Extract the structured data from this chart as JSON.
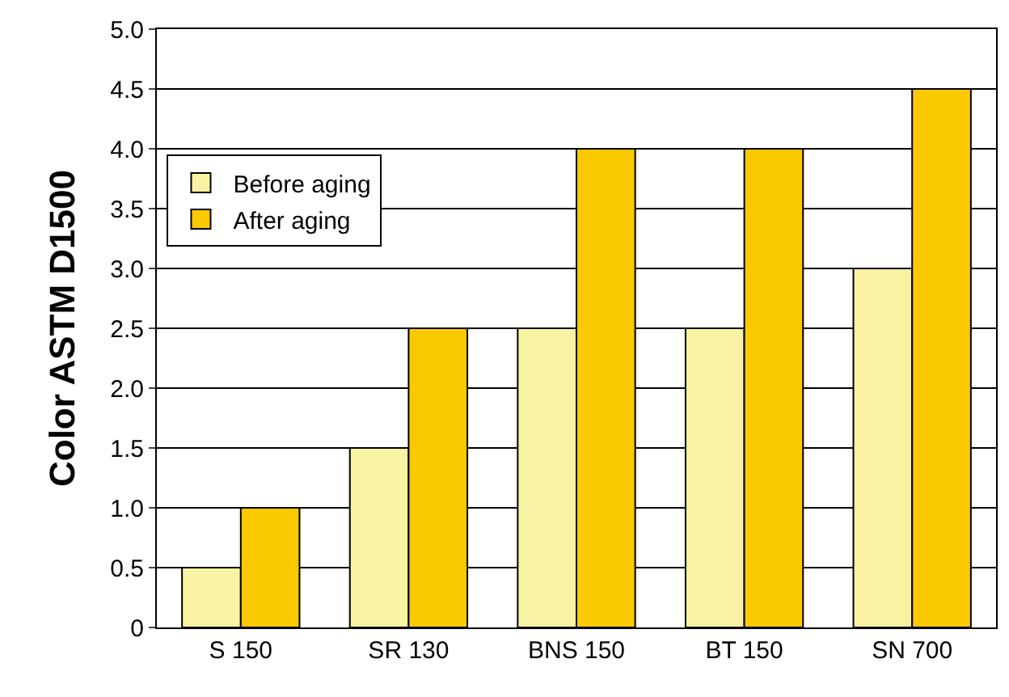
{
  "chart_data": {
    "type": "bar",
    "ylabel": "Color ASTM D1500",
    "categories": [
      "S 150",
      "SR 130",
      "BNS 150",
      "BT 150",
      "SN 700"
    ],
    "series": [
      {
        "name": "Before aging",
        "color": "#f8f3a3",
        "values": [
          0.5,
          1.5,
          2.5,
          2.5,
          3.0
        ]
      },
      {
        "name": "After aging",
        "color": "#fbc900",
        "values": [
          1.0,
          2.5,
          4.0,
          4.0,
          4.5
        ]
      }
    ],
    "ylim": [
      0,
      5
    ],
    "yticks": [
      0,
      {
        "value": 0.5,
        "label": "0.5"
      },
      {
        "value": 1,
        "label": "1.0"
      },
      {
        "value": 1.5,
        "label": "1.5"
      },
      {
        "value": 2,
        "label": "2.0"
      },
      {
        "value": 2.5,
        "label": "2.5"
      },
      {
        "value": 3,
        "label": "3.0"
      },
      {
        "value": 3.5,
        "label": "3.5"
      },
      {
        "value": 4,
        "label": "4.0"
      },
      {
        "value": 4.5,
        "label": "4.5"
      },
      {
        "value": 5,
        "label": "5.0"
      }
    ],
    "grid": "y",
    "legend": "top left"
  }
}
